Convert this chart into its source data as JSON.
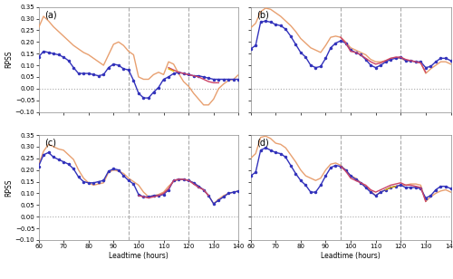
{
  "leadtime": [
    60,
    62,
    64,
    66,
    68,
    70,
    72,
    74,
    76,
    78,
    80,
    82,
    84,
    86,
    88,
    90,
    92,
    94,
    96,
    98,
    100,
    102,
    104,
    106,
    108,
    110,
    112,
    114,
    116,
    118,
    120,
    122,
    124,
    126,
    128,
    130,
    132,
    134,
    136,
    138,
    140
  ],
  "panel_a": {
    "orange": [
      0.26,
      0.31,
      0.29,
      0.265,
      0.245,
      0.225,
      0.205,
      0.185,
      0.17,
      0.155,
      0.145,
      0.13,
      0.115,
      0.1,
      0.145,
      0.19,
      0.2,
      0.185,
      0.16,
      0.145,
      0.05,
      0.04,
      0.04,
      0.06,
      0.07,
      0.06,
      0.115,
      0.105,
      0.065,
      0.03,
      0.01,
      -0.02,
      -0.045,
      -0.07,
      -0.07,
      -0.045,
      0.0,
      0.02,
      0.035,
      0.04,
      0.06
    ],
    "blue": [
      0.135,
      0.16,
      0.155,
      0.15,
      0.145,
      0.135,
      0.12,
      0.09,
      0.065,
      0.065,
      0.065,
      0.06,
      0.055,
      0.06,
      0.09,
      0.105,
      0.1,
      0.085,
      0.08,
      0.035,
      -0.02,
      -0.04,
      -0.04,
      -0.015,
      0.005,
      0.04,
      0.05,
      0.065,
      0.07,
      0.065,
      0.06,
      0.055,
      0.055,
      0.05,
      0.045,
      0.04,
      0.04,
      0.04,
      0.04,
      0.04,
      0.04
    ],
    "red": [
      null,
      null,
      null,
      null,
      null,
      null,
      null,
      null,
      null,
      null,
      null,
      null,
      null,
      null,
      null,
      null,
      null,
      null,
      null,
      null,
      null,
      null,
      null,
      null,
      null,
      null,
      0.09,
      0.08,
      0.07,
      0.065,
      0.06,
      0.055,
      0.05,
      0.04,
      0.03,
      0.025,
      0.025,
      null,
      null,
      null,
      null
    ],
    "yellow": [
      null,
      null,
      null,
      null,
      null,
      null,
      null,
      null,
      null,
      null,
      null,
      null,
      null,
      null,
      null,
      null,
      null,
      null,
      null,
      null,
      null,
      null,
      null,
      null,
      null,
      null,
      0.085,
      0.075,
      null,
      null,
      null,
      null,
      null,
      null,
      null,
      null,
      null,
      null,
      null,
      null,
      null
    ]
  },
  "panel_b": {
    "orange": [
      0.26,
      0.28,
      0.33,
      0.345,
      0.34,
      0.325,
      0.31,
      0.29,
      0.27,
      0.245,
      0.215,
      0.195,
      0.175,
      0.165,
      0.155,
      0.185,
      0.22,
      0.225,
      0.22,
      0.2,
      0.175,
      0.165,
      0.155,
      0.145,
      0.125,
      0.115,
      0.115,
      0.12,
      0.13,
      0.13,
      0.13,
      0.12,
      0.12,
      0.115,
      0.11,
      0.065,
      0.085,
      0.1,
      0.115,
      0.115,
      0.105
    ],
    "blue": [
      0.17,
      0.185,
      0.285,
      0.29,
      0.285,
      0.275,
      0.27,
      0.255,
      0.225,
      0.19,
      0.155,
      0.135,
      0.1,
      0.09,
      0.095,
      0.13,
      0.175,
      0.195,
      0.205,
      0.195,
      0.165,
      0.155,
      0.145,
      0.125,
      0.1,
      0.09,
      0.1,
      0.115,
      0.125,
      0.13,
      0.135,
      0.12,
      0.12,
      0.115,
      0.115,
      0.09,
      0.095,
      0.115,
      0.13,
      0.13,
      0.12
    ],
    "red": [
      null,
      null,
      null,
      null,
      null,
      null,
      null,
      null,
      null,
      null,
      null,
      null,
      null,
      null,
      null,
      null,
      null,
      null,
      0.22,
      0.195,
      0.16,
      0.155,
      0.145,
      0.13,
      0.115,
      0.105,
      0.11,
      0.12,
      0.13,
      0.135,
      0.135,
      0.125,
      0.12,
      0.115,
      0.11,
      0.07,
      null,
      null,
      null,
      null,
      null
    ]
  },
  "panel_c": {
    "orange": [
      0.22,
      0.28,
      0.31,
      0.3,
      0.29,
      0.285,
      0.265,
      0.245,
      0.2,
      0.165,
      0.145,
      0.135,
      0.14,
      0.145,
      0.19,
      0.2,
      0.195,
      0.185,
      0.165,
      0.15,
      0.135,
      0.105,
      0.085,
      0.09,
      0.095,
      0.105,
      0.13,
      0.15,
      0.16,
      0.16,
      0.155,
      0.145,
      0.13,
      0.115,
      0.09,
      0.055,
      0.075,
      0.09,
      0.1,
      0.105,
      0.11
    ],
    "blue": [
      0.215,
      0.265,
      0.275,
      0.255,
      0.245,
      0.235,
      0.225,
      0.205,
      0.17,
      0.15,
      0.145,
      0.145,
      0.15,
      0.155,
      0.195,
      0.205,
      0.2,
      0.175,
      0.155,
      0.14,
      0.095,
      0.085,
      0.085,
      0.09,
      0.09,
      0.095,
      0.115,
      0.155,
      0.16,
      0.16,
      0.155,
      0.145,
      0.13,
      0.115,
      0.09,
      0.055,
      0.07,
      0.085,
      0.1,
      0.105,
      0.11
    ],
    "red": [
      null,
      null,
      null,
      null,
      null,
      null,
      null,
      null,
      null,
      null,
      null,
      null,
      null,
      null,
      null,
      null,
      null,
      null,
      null,
      null,
      0.09,
      0.085,
      0.08,
      0.085,
      0.09,
      0.1,
      0.12,
      0.155,
      0.16,
      0.16,
      0.155,
      0.14,
      0.125,
      0.115,
      0.09,
      null,
      null,
      null,
      null,
      null,
      null
    ]
  },
  "panel_d": {
    "orange": [
      0.25,
      0.27,
      0.34,
      0.345,
      0.335,
      0.315,
      0.31,
      0.295,
      0.265,
      0.235,
      0.2,
      0.175,
      0.165,
      0.155,
      0.165,
      0.2,
      0.225,
      0.23,
      0.22,
      0.2,
      0.175,
      0.165,
      0.145,
      0.13,
      0.11,
      0.09,
      0.105,
      0.115,
      0.125,
      0.13,
      0.135,
      0.135,
      0.14,
      0.14,
      0.135,
      0.065,
      0.085,
      0.1,
      0.11,
      0.115,
      0.105
    ],
    "blue": [
      0.175,
      0.19,
      0.285,
      0.295,
      0.285,
      0.275,
      0.27,
      0.255,
      0.22,
      0.185,
      0.155,
      0.135,
      0.105,
      0.105,
      0.135,
      0.175,
      0.21,
      0.22,
      0.215,
      0.2,
      0.175,
      0.16,
      0.145,
      0.125,
      0.105,
      0.09,
      0.105,
      0.115,
      0.125,
      0.13,
      0.135,
      0.125,
      0.125,
      0.125,
      0.12,
      0.08,
      0.09,
      0.115,
      0.13,
      0.13,
      0.12
    ],
    "red": [
      null,
      null,
      null,
      null,
      null,
      null,
      null,
      null,
      null,
      null,
      null,
      null,
      null,
      null,
      null,
      null,
      null,
      null,
      0.215,
      0.195,
      0.165,
      0.155,
      0.145,
      0.135,
      0.115,
      0.105,
      0.115,
      0.125,
      0.135,
      0.14,
      0.145,
      0.135,
      0.135,
      0.13,
      0.125,
      0.065,
      null,
      null,
      null,
      null,
      null
    ],
    "yellow": [
      null,
      null,
      null,
      null,
      null,
      null,
      null,
      null,
      null,
      null,
      null,
      null,
      null,
      null,
      null,
      null,
      null,
      null,
      null,
      null,
      null,
      null,
      null,
      null,
      null,
      null,
      null,
      0.115,
      0.125,
      0.13,
      null,
      null,
      null,
      null,
      null,
      null,
      null,
      null,
      null,
      null,
      null
    ]
  },
  "vlines": [
    96,
    120
  ],
  "hline": 0.0,
  "xlim": [
    60,
    140
  ],
  "xticks": [
    60,
    70,
    80,
    90,
    100,
    110,
    120,
    130,
    140
  ],
  "ylim": [
    -0.1,
    0.35
  ],
  "yticks": [
    -0.1,
    -0.05,
    0.0,
    0.05,
    0.1,
    0.15,
    0.2,
    0.25,
    0.3,
    0.35
  ],
  "xlabel": "Leadtime (hours)",
  "ylabel": "RPSS",
  "color_orange": "#E8A070",
  "color_blue": "#3333BB",
  "color_red": "#CC4466",
  "color_yellow": "#DDAA00",
  "panel_labels": [
    "(a)",
    "(b)",
    "(c)",
    "(d)"
  ],
  "bg_color": "#FFFFFF"
}
